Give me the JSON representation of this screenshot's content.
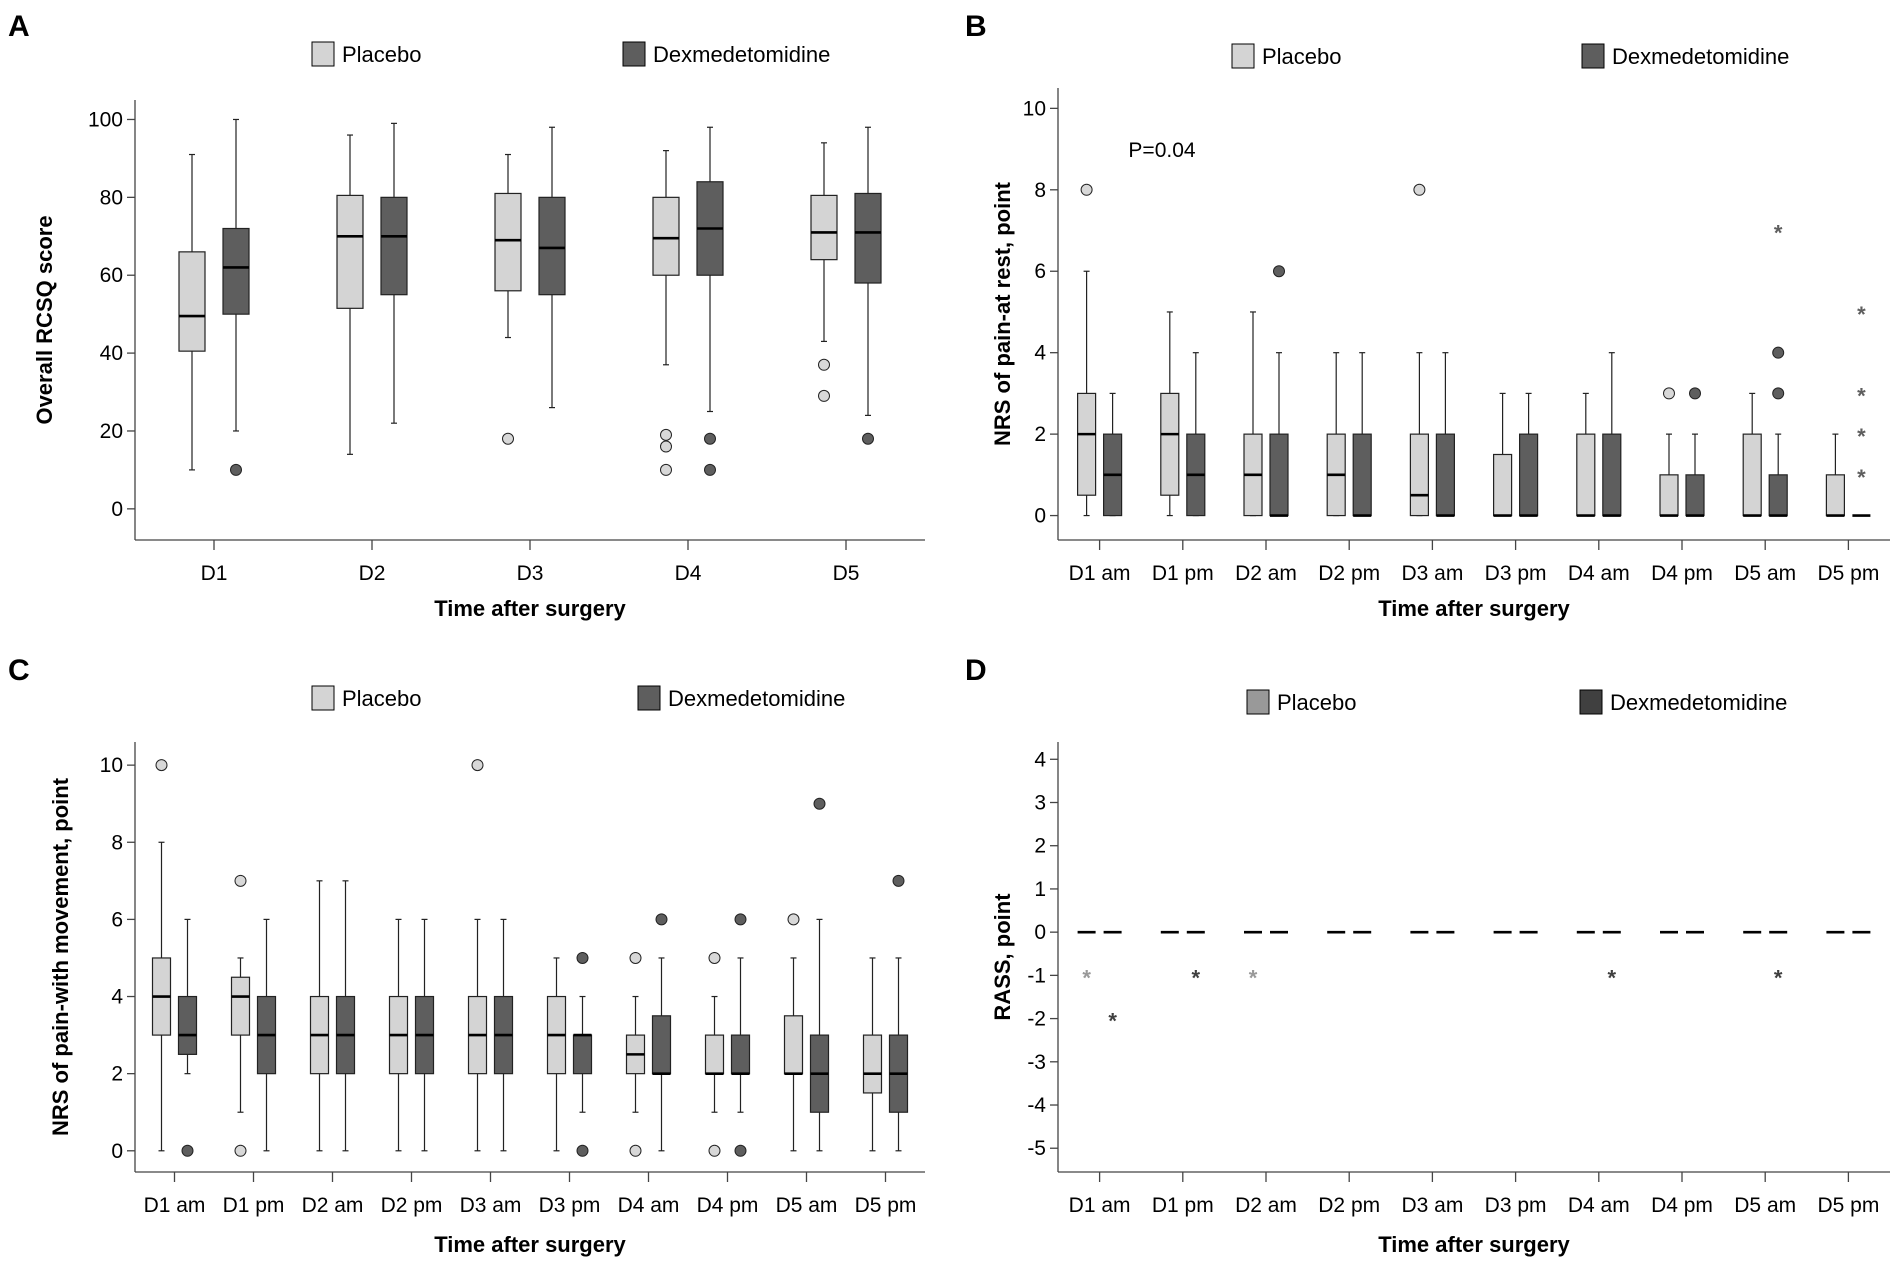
{
  "chart_data": [
    {
      "id": "A",
      "panel_label": "A",
      "type": "box",
      "title": "",
      "xlabel": "Time after surgery",
      "ylabel": "Overall RCSQ score",
      "ylim": [
        -8,
        105
      ],
      "yticks": [
        0,
        20,
        40,
        60,
        80,
        100
      ],
      "categories": [
        "D1",
        "D2",
        "D3",
        "D4",
        "D5"
      ],
      "legend": [
        {
          "name": "Placebo",
          "color": "#d4d4d4"
        },
        {
          "name": "Dexmedetomidine",
          "color": "#5e5e5e"
        }
      ],
      "series": [
        {
          "name": "Placebo",
          "color": "#d4d4d4",
          "outlier_color": "#d8d8d8",
          "boxes": [
            {
              "min": 10,
              "q1": 40.5,
              "median": 49.5,
              "q3": 66,
              "max": 91,
              "outliers": []
            },
            {
              "min": 14,
              "q1": 51.5,
              "median": 70,
              "q3": 80.5,
              "max": 96,
              "outliers": []
            },
            {
              "min": 44,
              "q1": 56,
              "median": 69,
              "q3": 81,
              "max": 91,
              "outliers": [
                18
              ]
            },
            {
              "min": 37,
              "q1": 60,
              "median": 69.5,
              "q3": 80,
              "max": 92,
              "outliers": [
                19,
                16,
                10
              ]
            },
            {
              "min": 43,
              "q1": 64,
              "median": 71,
              "q3": 80.5,
              "max": 94,
              "outliers": [
                37,
                29
              ]
            }
          ]
        },
        {
          "name": "Dexmedetomidine",
          "color": "#5e5e5e",
          "outlier_color": "#5e5e5e",
          "boxes": [
            {
              "min": 20,
              "q1": 50,
              "median": 62,
              "q3": 72,
              "max": 100,
              "outliers": [
                10
              ]
            },
            {
              "min": 22,
              "q1": 55,
              "median": 70,
              "q3": 80,
              "max": 99,
              "outliers": []
            },
            {
              "min": 26,
              "q1": 55,
              "median": 67,
              "q3": 80,
              "max": 98,
              "outliers": []
            },
            {
              "min": 25,
              "q1": 60,
              "median": 72,
              "q3": 84,
              "max": 98,
              "outliers": [
                18,
                10
              ]
            },
            {
              "min": 24,
              "q1": 58,
              "median": 71,
              "q3": 81,
              "max": 98,
              "outliers": [
                18
              ]
            }
          ]
        }
      ],
      "annotations": []
    },
    {
      "id": "B",
      "panel_label": "B",
      "type": "box",
      "title": "",
      "xlabel": "Time after surgery",
      "ylabel": "NRS of pain-at rest, point",
      "ylim": [
        -0.6,
        10.5
      ],
      "yticks": [
        0,
        2,
        4,
        6,
        8,
        10
      ],
      "categories": [
        "D1 am",
        "D1 pm",
        "D2 am",
        "D2 pm",
        "D3 am",
        "D3 pm",
        "D4 am",
        "D4 pm",
        "D5 am",
        "D5 pm"
      ],
      "legend": [
        {
          "name": "Placebo",
          "color": "#d4d4d4"
        },
        {
          "name": "Dexmedetomidine",
          "color": "#5e5e5e"
        }
      ],
      "series": [
        {
          "name": "Placebo",
          "color": "#d4d4d4",
          "outlier_color": "#d8d8d8",
          "boxes": [
            {
              "min": 0,
              "q1": 0.5,
              "median": 2,
              "q3": 3,
              "max": 6,
              "outliers": [
                8
              ]
            },
            {
              "min": 0,
              "q1": 0.5,
              "median": 2,
              "q3": 3,
              "max": 5,
              "outliers": []
            },
            {
              "min": 0,
              "q1": 0,
              "median": 1,
              "q3": 2,
              "max": 5,
              "outliers": []
            },
            {
              "min": 0,
              "q1": 0,
              "median": 1,
              "q3": 2,
              "max": 4,
              "outliers": []
            },
            {
              "min": 0,
              "q1": 0,
              "median": 0.5,
              "q3": 2,
              "max": 4,
              "outliers": [
                8
              ]
            },
            {
              "min": 0,
              "q1": 0,
              "median": 0,
              "q3": 1.5,
              "max": 3,
              "outliers": []
            },
            {
              "min": 0,
              "q1": 0,
              "median": 0,
              "q3": 2,
              "max": 3,
              "outliers": []
            },
            {
              "min": 0,
              "q1": 0,
              "median": 0,
              "q3": 1,
              "max": 2,
              "outliers": [
                3
              ]
            },
            {
              "min": 0,
              "q1": 0,
              "median": 0,
              "q3": 2,
              "max": 3,
              "outliers": []
            },
            {
              "min": 0,
              "q1": 0,
              "median": 0,
              "q3": 1,
              "max": 2,
              "outliers": []
            }
          ]
        },
        {
          "name": "Dexmedetomidine",
          "color": "#5e5e5e",
          "outlier_color": "#5e5e5e",
          "boxes": [
            {
              "min": 0,
              "q1": 0,
              "median": 1,
              "q3": 2,
              "max": 3,
              "outliers": []
            },
            {
              "min": 0,
              "q1": 0,
              "median": 1,
              "q3": 2,
              "max": 4,
              "outliers": []
            },
            {
              "min": 0,
              "q1": 0,
              "median": 0,
              "q3": 2,
              "max": 4,
              "outliers": [
                6
              ]
            },
            {
              "min": 0,
              "q1": 0,
              "median": 0,
              "q3": 2,
              "max": 4,
              "outliers": []
            },
            {
              "min": 0,
              "q1": 0,
              "median": 0,
              "q3": 2,
              "max": 4,
              "outliers": []
            },
            {
              "min": 0,
              "q1": 0,
              "median": 0,
              "q3": 2,
              "max": 3,
              "outliers": []
            },
            {
              "min": 0,
              "q1": 0,
              "median": 0,
              "q3": 2,
              "max": 4,
              "outliers": []
            },
            {
              "min": 0,
              "q1": 0,
              "median": 0,
              "q3": 1,
              "max": 2,
              "outliers": [
                3
              ]
            },
            {
              "min": 0,
              "q1": 0,
              "median": 0,
              "q3": 1,
              "max": 2,
              "outliers": [
                4,
                3
              ],
              "extremes": [
                7
              ]
            },
            {
              "min": 0,
              "q1": 0,
              "median": 0,
              "q3": 0,
              "max": 0,
              "outliers": [],
              "extremes": [
                5,
                3,
                2,
                1
              ]
            }
          ]
        }
      ],
      "annotations": [
        {
          "text": "P=0.04",
          "x": 1.25,
          "y": 9.0
        }
      ]
    },
    {
      "id": "C",
      "panel_label": "C",
      "type": "box",
      "title": "",
      "xlabel": "Time after surgery",
      "ylabel": "NRS of pain-with movement, point",
      "ylim": [
        -0.55,
        10.6
      ],
      "yticks": [
        0,
        2,
        4,
        6,
        8,
        10
      ],
      "categories": [
        "D1 am",
        "D1 pm",
        "D2 am",
        "D2 pm",
        "D3 am",
        "D3 pm",
        "D4 am",
        "D4 pm",
        "D5 am",
        "D5 pm"
      ],
      "legend": [
        {
          "name": "Placebo",
          "color": "#d4d4d4"
        },
        {
          "name": "Dexmedetomidine",
          "color": "#5e5e5e"
        }
      ],
      "series": [
        {
          "name": "Placebo",
          "color": "#d4d4d4",
          "outlier_color": "#d8d8d8",
          "boxes": [
            {
              "min": 0,
              "q1": 3,
              "median": 4,
              "q3": 5,
              "max": 8,
              "outliers": [
                10
              ]
            },
            {
              "min": 1,
              "q1": 3,
              "median": 4,
              "q3": 4.5,
              "max": 5,
              "outliers": [
                7,
                0
              ]
            },
            {
              "min": 0,
              "q1": 2,
              "median": 3,
              "q3": 4,
              "max": 7,
              "outliers": []
            },
            {
              "min": 0,
              "q1": 2,
              "median": 3,
              "q3": 4,
              "max": 6,
              "outliers": []
            },
            {
              "min": 0,
              "q1": 2,
              "median": 3,
              "q3": 4,
              "max": 6,
              "outliers": [
                10
              ]
            },
            {
              "min": 0,
              "q1": 2,
              "median": 3,
              "q3": 4,
              "max": 5,
              "outliers": []
            },
            {
              "min": 1,
              "q1": 2,
              "median": 2.5,
              "q3": 3,
              "max": 4,
              "outliers": [
                5,
                0
              ]
            },
            {
              "min": 1,
              "q1": 2,
              "median": 2,
              "q3": 3,
              "max": 4,
              "outliers": [
                5,
                0
              ]
            },
            {
              "min": 0,
              "q1": 2,
              "median": 2,
              "q3": 3.5,
              "max": 5,
              "outliers": [
                6
              ]
            },
            {
              "min": 0,
              "q1": 1.5,
              "median": 2,
              "q3": 3,
              "max": 5,
              "outliers": []
            }
          ]
        },
        {
          "name": "Dexmedetomidine",
          "color": "#5e5e5e",
          "outlier_color": "#5e5e5e",
          "boxes": [
            {
              "min": 2,
              "q1": 2.5,
              "median": 3,
              "q3": 4,
              "max": 6,
              "outliers": [
                0
              ]
            },
            {
              "min": 0,
              "q1": 2,
              "median": 3,
              "q3": 4,
              "max": 6,
              "outliers": []
            },
            {
              "min": 0,
              "q1": 2,
              "median": 3,
              "q3": 4,
              "max": 7,
              "outliers": []
            },
            {
              "min": 0,
              "q1": 2,
              "median": 3,
              "q3": 4,
              "max": 6,
              "outliers": []
            },
            {
              "min": 0,
              "q1": 2,
              "median": 3,
              "q3": 4,
              "max": 6,
              "outliers": []
            },
            {
              "min": 1,
              "q1": 2,
              "median": 3,
              "q3": 3,
              "max": 4,
              "outliers": [
                5,
                0
              ]
            },
            {
              "min": 0,
              "q1": 2,
              "median": 2,
              "q3": 3.5,
              "max": 5,
              "outliers": [
                6
              ]
            },
            {
              "min": 1,
              "q1": 2,
              "median": 2,
              "q3": 3,
              "max": 5,
              "outliers": [
                6,
                0
              ]
            },
            {
              "min": 0,
              "q1": 1,
              "median": 2,
              "q3": 3,
              "max": 6,
              "outliers": [
                9
              ]
            },
            {
              "min": 0,
              "q1": 1,
              "median": 2,
              "q3": 3,
              "max": 5,
              "outliers": [
                7
              ]
            }
          ]
        }
      ],
      "annotations": []
    },
    {
      "id": "D",
      "panel_label": "D",
      "type": "box",
      "title": "",
      "xlabel": "Time after surgery",
      "ylabel": "RASS, point",
      "ylim": [
        -5.55,
        4.4
      ],
      "yticks": [
        -5,
        -4,
        -3,
        -2,
        -1,
        0,
        1,
        2,
        3,
        4
      ],
      "categories": [
        "D1 am",
        "D1 pm",
        "D2 am",
        "D2 pm",
        "D3 am",
        "D3 pm",
        "D4 am",
        "D4 pm",
        "D5 am",
        "D5 pm"
      ],
      "legend": [
        {
          "name": "Placebo",
          "color": "#999999"
        },
        {
          "name": "Dexmedetomidine",
          "color": "#404040"
        }
      ],
      "series": [
        {
          "name": "Placebo",
          "color": "#999999",
          "outlier_color": "#999999",
          "boxes": [
            {
              "min": 0,
              "q1": 0,
              "median": 0,
              "q3": 0,
              "max": 0,
              "outliers": [],
              "extremes": [
                -1
              ]
            },
            {
              "min": 0,
              "q1": 0,
              "median": 0,
              "q3": 0,
              "max": 0,
              "outliers": []
            },
            {
              "min": 0,
              "q1": 0,
              "median": 0,
              "q3": 0,
              "max": 0,
              "outliers": [],
              "extremes": [
                -1
              ]
            },
            {
              "min": 0,
              "q1": 0,
              "median": 0,
              "q3": 0,
              "max": 0,
              "outliers": []
            },
            {
              "min": 0,
              "q1": 0,
              "median": 0,
              "q3": 0,
              "max": 0,
              "outliers": []
            },
            {
              "min": 0,
              "q1": 0,
              "median": 0,
              "q3": 0,
              "max": 0,
              "outliers": []
            },
            {
              "min": 0,
              "q1": 0,
              "median": 0,
              "q3": 0,
              "max": 0,
              "outliers": []
            },
            {
              "min": 0,
              "q1": 0,
              "median": 0,
              "q3": 0,
              "max": 0,
              "outliers": []
            },
            {
              "min": 0,
              "q1": 0,
              "median": 0,
              "q3": 0,
              "max": 0,
              "outliers": []
            },
            {
              "min": 0,
              "q1": 0,
              "median": 0,
              "q3": 0,
              "max": 0,
              "outliers": []
            }
          ]
        },
        {
          "name": "Dexmedetomidine",
          "color": "#404040",
          "outlier_color": "#404040",
          "boxes": [
            {
              "min": 0,
              "q1": 0,
              "median": 0,
              "q3": 0,
              "max": 0,
              "outliers": [],
              "extremes": [
                -2
              ]
            },
            {
              "min": 0,
              "q1": 0,
              "median": 0,
              "q3": 0,
              "max": 0,
              "outliers": [],
              "extremes": [
                -1
              ]
            },
            {
              "min": 0,
              "q1": 0,
              "median": 0,
              "q3": 0,
              "max": 0,
              "outliers": []
            },
            {
              "min": 0,
              "q1": 0,
              "median": 0,
              "q3": 0,
              "max": 0,
              "outliers": []
            },
            {
              "min": 0,
              "q1": 0,
              "median": 0,
              "q3": 0,
              "max": 0,
              "outliers": []
            },
            {
              "min": 0,
              "q1": 0,
              "median": 0,
              "q3": 0,
              "max": 0,
              "outliers": []
            },
            {
              "min": 0,
              "q1": 0,
              "median": 0,
              "q3": 0,
              "max": 0,
              "outliers": [],
              "extremes": [
                -1
              ]
            },
            {
              "min": 0,
              "q1": 0,
              "median": 0,
              "q3": 0,
              "max": 0,
              "outliers": []
            },
            {
              "min": 0,
              "q1": 0,
              "median": 0,
              "q3": 0,
              "max": 0,
              "outliers": [],
              "extremes": [
                -1
              ]
            },
            {
              "min": 0,
              "q1": 0,
              "median": 0,
              "q3": 0,
              "max": 0,
              "outliers": []
            }
          ]
        }
      ],
      "annotations": []
    }
  ]
}
